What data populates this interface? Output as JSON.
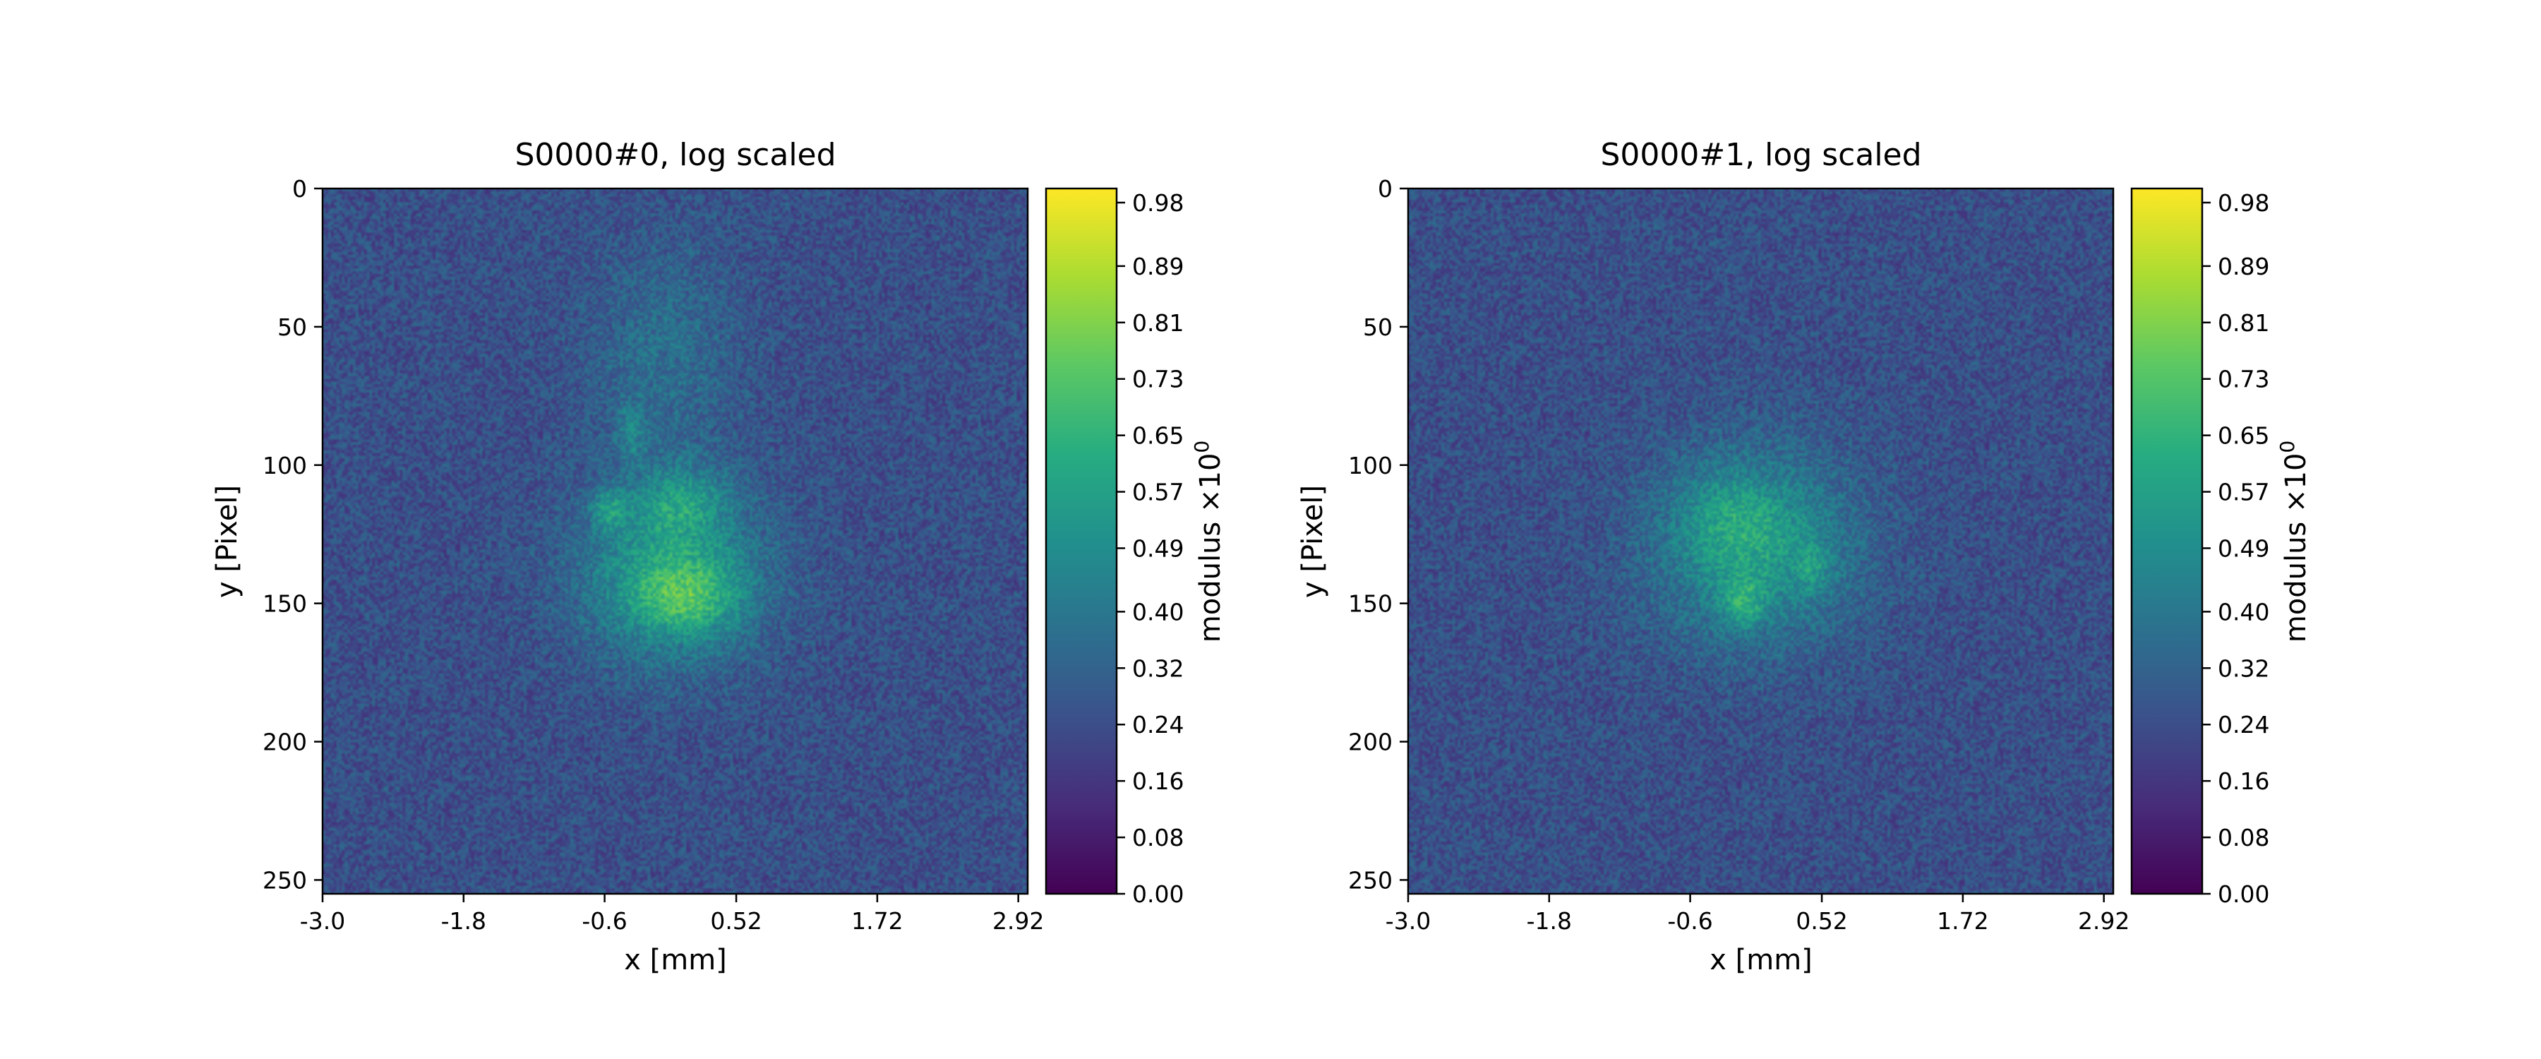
{
  "chart_data": [
    {
      "type": "heatmap",
      "title": "S0000#0, log scaled",
      "xlabel": "x [mm]",
      "ylabel": "y [Pixel]",
      "xticks": [
        "-3.0",
        "-1.8",
        "-0.6",
        "0.52",
        "1.72",
        "2.92"
      ],
      "yticks": [
        "0",
        "50",
        "100",
        "150",
        "200",
        "250"
      ],
      "ylim": [
        255,
        0
      ],
      "colorbar": {
        "label": "modulus ×10",
        "label_exponent": "0",
        "range": [
          0.0,
          1.0
        ],
        "ticks": [
          "0.98",
          "0.89",
          "0.81",
          "0.73",
          "0.65",
          "0.57",
          "0.49",
          "0.40",
          "0.32",
          "0.24",
          "0.16",
          "0.08",
          "0.00"
        ],
        "colormap": [
          "#440154",
          "#472c7a",
          "#3b518b",
          "#2c718e",
          "#21908d",
          "#27ad81",
          "#5cc863",
          "#aadc32",
          "#fde725"
        ]
      },
      "blobs": [
        {
          "cx": -0.03,
          "cy": 140,
          "sx": 0.55,
          "sy": 22,
          "amp": 0.32
        },
        {
          "cx": 0.1,
          "cy": 148,
          "sx": 0.3,
          "sy": 9,
          "amp": 0.22
        },
        {
          "cx": 0.05,
          "cy": 113,
          "sx": 0.28,
          "sy": 9,
          "amp": 0.18
        },
        {
          "cx": -0.57,
          "cy": 116,
          "sx": 0.1,
          "sy": 5,
          "amp": 0.22
        },
        {
          "cx": -0.38,
          "cy": 88,
          "sx": 0.08,
          "sy": 7,
          "amp": 0.16
        },
        {
          "cx": -0.1,
          "cy": 60,
          "sx": 0.45,
          "sy": 28,
          "amp": 0.12
        }
      ]
    },
    {
      "type": "heatmap",
      "title": "S0000#1, log scaled",
      "xlabel": "x [mm]",
      "ylabel": "y [Pixel]",
      "xticks": [
        "-3.0",
        "-1.8",
        "-0.6",
        "0.52",
        "1.72",
        "2.92"
      ],
      "yticks": [
        "0",
        "50",
        "100",
        "150",
        "200",
        "250"
      ],
      "ylim": [
        255,
        0
      ],
      "colorbar": {
        "label": "modulus ×10",
        "label_exponent": "0",
        "range": [
          0.0,
          1.0
        ],
        "ticks": [
          "0.98",
          "0.89",
          "0.81",
          "0.73",
          "0.65",
          "0.57",
          "0.49",
          "0.40",
          "0.32",
          "0.24",
          "0.16",
          "0.08",
          "0.00"
        ],
        "colormap": [
          "#440154",
          "#472c7a",
          "#3b518b",
          "#2c718e",
          "#21908d",
          "#27ad81",
          "#5cc863",
          "#aadc32",
          "#fde725"
        ]
      },
      "blobs": [
        {
          "cx": -0.05,
          "cy": 130,
          "sx": 0.6,
          "sy": 24,
          "amp": 0.3
        },
        {
          "cx": -0.15,
          "cy": 150,
          "sx": 0.12,
          "sy": 6,
          "amp": 0.2
        },
        {
          "cx": 0.45,
          "cy": 137,
          "sx": 0.1,
          "sy": 6,
          "amp": 0.12
        },
        {
          "cx": -0.25,
          "cy": 118,
          "sx": 0.3,
          "sy": 12,
          "amp": 0.1
        }
      ]
    }
  ]
}
